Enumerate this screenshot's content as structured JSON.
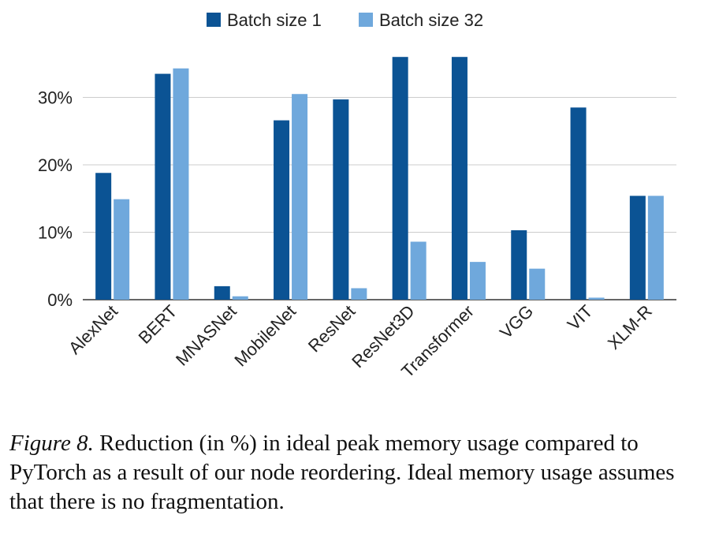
{
  "chart_data": {
    "type": "bar",
    "categories": [
      "AlexNet",
      "BERT",
      "MNASNet",
      "MobileNet",
      "ResNet",
      "ResNet3D",
      "Transformer",
      "VGG",
      "VIT",
      "XLM-R"
    ],
    "series": [
      {
        "name": "Batch size 1",
        "color": "#0b5394",
        "values": [
          18.8,
          33.5,
          2.0,
          26.6,
          29.7,
          36.0,
          36.0,
          10.3,
          28.5,
          15.4
        ]
      },
      {
        "name": "Batch size 32",
        "color": "#6fa8dc",
        "values": [
          14.9,
          34.3,
          0.5,
          30.5,
          1.7,
          8.6,
          5.6,
          4.6,
          0.3,
          15.4
        ]
      }
    ],
    "yticks": [
      0,
      10,
      20,
      30
    ],
    "ytick_labels": [
      "0%",
      "10%",
      "20%",
      "30%"
    ],
    "ylim": [
      0,
      36
    ],
    "legend_position": "top",
    "grid": true
  },
  "caption": {
    "label": "Figure 8.",
    "text": " Reduction (in %) in ideal peak memory usage compared to PyTorch as a result of our node reordering. Ideal memory usage assumes that there is no fragmentation."
  }
}
